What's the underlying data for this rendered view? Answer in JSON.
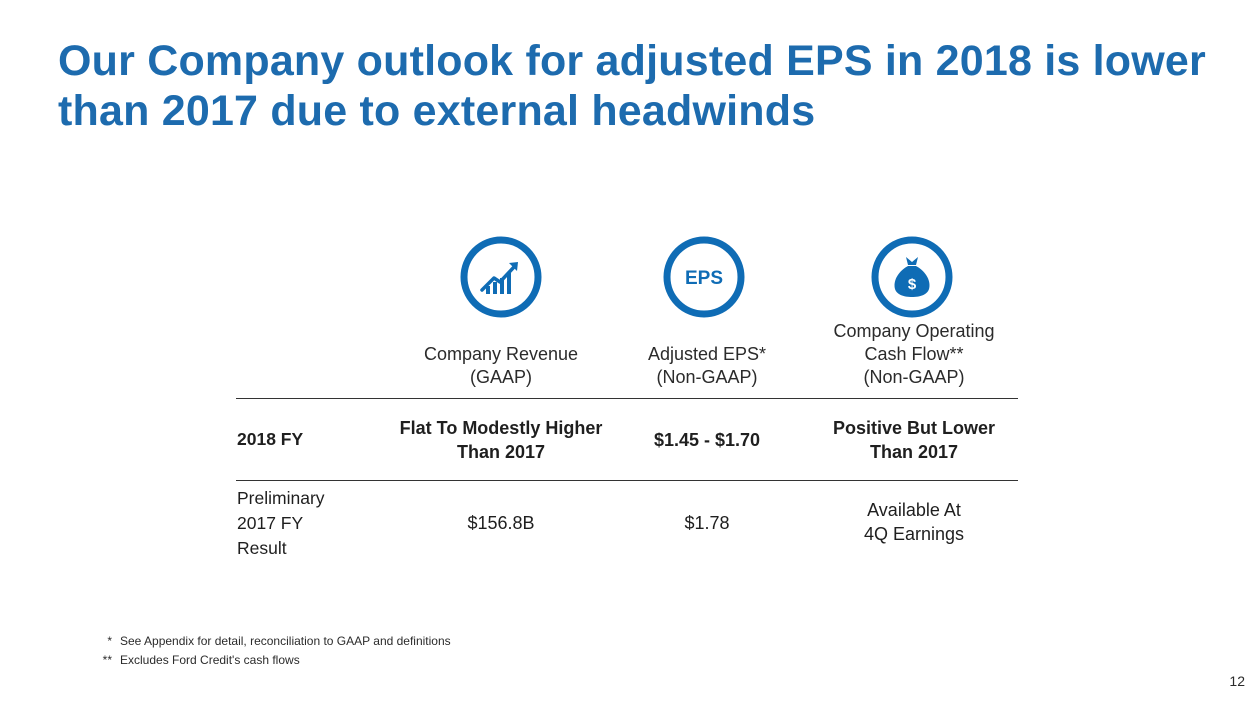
{
  "title_lines": [
    "Our Company outlook for adjusted EPS in 2018 is lower",
    "than 2017 due to external headwinds"
  ],
  "icons": {
    "revenue": "chart-up-icon",
    "eps": "eps-icon",
    "cashflow": "money-bag-icon",
    "eps_text": "EPS",
    "money_text": "$"
  },
  "columns": [
    {
      "lines": [
        "Company Revenue",
        "(GAAP)"
      ]
    },
    {
      "lines": [
        "Adjusted EPS*",
        "(Non-GAAP)"
      ]
    },
    {
      "lines": [
        "Company Operating",
        "Cash Flow**",
        "(Non-GAAP)"
      ]
    }
  ],
  "rows": [
    {
      "label_lines": [
        "2018 FY"
      ],
      "cells": [
        [
          "Flat To Modestly Higher",
          "Than 2017"
        ],
        [
          "$1.45 - $1.70"
        ],
        [
          "Positive But Lower",
          "Than 2017"
        ]
      ]
    },
    {
      "label_lines": [
        "Preliminary",
        "2017 FY",
        "Result"
      ],
      "cells": [
        [
          "$156.8B"
        ],
        [
          "$1.78"
        ],
        [
          "Available At",
          "4Q Earnings"
        ]
      ]
    }
  ],
  "footnotes": [
    {
      "mark": "*",
      "text": "See Appendix for detail, reconciliation to GAAP and definitions"
    },
    {
      "mark": "**",
      "text": "Excludes Ford Credit's cash flows"
    }
  ],
  "page_number": "12",
  "colors": {
    "accent": "#1d6bae",
    "ring": "#0f6cb5"
  }
}
